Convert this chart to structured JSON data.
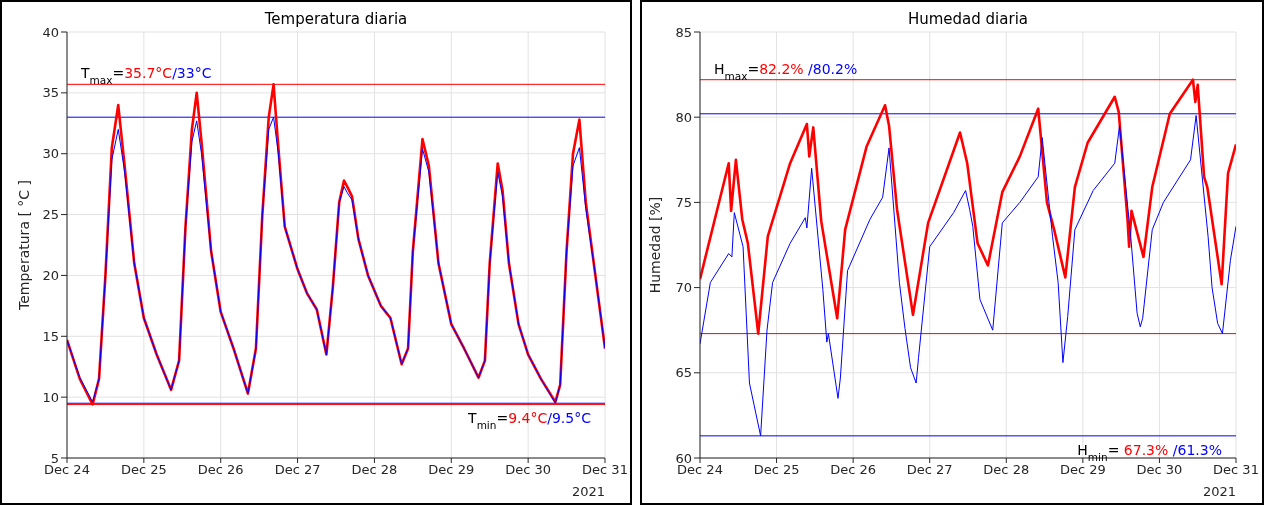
{
  "chart_data": [
    {
      "type": "line",
      "title": "Temperatura diaria",
      "ylabel": "Temperatura [ °C ]",
      "xlim": [
        "2021-12-24",
        "2021-12-31"
      ],
      "xticks": [
        {
          "value": "2021-12-24",
          "label": "Dec 24"
        },
        {
          "value": "2021-12-25",
          "label": "Dec 25"
        },
        {
          "value": "2021-12-26",
          "label": "Dec 26"
        },
        {
          "value": "2021-12-27",
          "label": "Dec 27"
        },
        {
          "value": "2021-12-28",
          "label": "Dec 28"
        },
        {
          "value": "2021-12-29",
          "label": "Dec 29"
        },
        {
          "value": "2021-12-30",
          "label": "Dec 30"
        },
        {
          "value": "2021-12-31",
          "label": "Dec 31"
        }
      ],
      "ylim": [
        5,
        40
      ],
      "yticks": [
        5,
        10,
        15,
        20,
        25,
        30,
        35,
        40
      ],
      "grid": true,
      "x": [
        "2021-12-24T00:00",
        "2021-12-24T04:00",
        "2021-12-24T08:00",
        "2021-12-24T10:00",
        "2021-12-24T12:00",
        "2021-12-24T14:00",
        "2021-12-24T16:00",
        "2021-12-24T18:00",
        "2021-12-24T21:00",
        "2021-12-25T00:00",
        "2021-12-25T04:00",
        "2021-12-25T08:30",
        "2021-12-25T11:00",
        "2021-12-25T13:00",
        "2021-12-25T15:00",
        "2021-12-25T16:30",
        "2021-12-25T18:00",
        "2021-12-25T21:00",
        "2021-12-26T00:00",
        "2021-12-26T04:00",
        "2021-12-26T08:30",
        "2021-12-26T11:00",
        "2021-12-26T13:00",
        "2021-12-26T15:00",
        "2021-12-26T16:30",
        "2021-12-26T18:00",
        "2021-12-26T20:00",
        "2021-12-27T00:00",
        "2021-12-27T03:00",
        "2021-12-27T06:00",
        "2021-12-27T09:00",
        "2021-12-27T11:00",
        "2021-12-27T13:00",
        "2021-12-27T14:30",
        "2021-12-27T15:30",
        "2021-12-27T17:00",
        "2021-12-27T19:00",
        "2021-12-27T22:00",
        "2021-12-28T02:00",
        "2021-12-28T05:00",
        "2021-12-28T08:30",
        "2021-12-28T10:30",
        "2021-12-28T12:00",
        "2021-12-28T15:00",
        "2021-12-28T17:00",
        "2021-12-28T20:00",
        "2021-12-29T00:00",
        "2021-12-29T04:00",
        "2021-12-29T08:30",
        "2021-12-29T10:30",
        "2021-12-29T12:00",
        "2021-12-29T14:30",
        "2021-12-29T16:00",
        "2021-12-29T18:00",
        "2021-12-29T21:00",
        "2021-12-30T00:00",
        "2021-12-30T04:00",
        "2021-12-30T08:30",
        "2021-12-30T10:00",
        "2021-12-30T12:00",
        "2021-12-30T14:00",
        "2021-12-30T16:00",
        "2021-12-30T18:00",
        "2021-12-30T21:00",
        "2021-12-31T00:00"
      ],
      "series": [
        {
          "color": "#ff0000",
          "values": [
            14.7,
            11.5,
            9.4,
            11.5,
            20,
            30.5,
            34,
            29,
            21,
            16.5,
            13.5,
            10.6,
            13,
            24,
            32,
            35,
            31,
            22,
            17,
            14,
            10.3,
            14,
            25,
            33,
            35.7,
            30.5,
            24,
            20.5,
            18.5,
            17.2,
            13.5,
            19,
            26,
            27.8,
            27.3,
            26.5,
            23,
            20,
            17.5,
            16.5,
            12.7,
            14,
            22,
            31.2,
            29,
            21,
            16,
            14,
            11.6,
            13,
            21,
            29.2,
            27,
            21,
            16,
            13.5,
            11.5,
            9.6,
            11,
            22,
            30,
            32.8,
            26,
            20,
            14
          ]
        },
        {
          "color": "#0000ff",
          "values": [
            14.7,
            11.6,
            9.6,
            11.5,
            20,
            29.5,
            32,
            28.5,
            21,
            16.5,
            13.5,
            10.6,
            13,
            24,
            31,
            32.7,
            30,
            22,
            17,
            14,
            10.3,
            14,
            25,
            32,
            33,
            30,
            24,
            20.5,
            18.5,
            17.2,
            13.5,
            19,
            26,
            27.3,
            26.8,
            26.2,
            23,
            20,
            17.5,
            16.5,
            12.7,
            14,
            22,
            30.4,
            28.5,
            21,
            16,
            14,
            11.6,
            13,
            21,
            28.5,
            26.5,
            21,
            16,
            13.5,
            11.5,
            9.5,
            11,
            22,
            29,
            30.5,
            25.5,
            20,
            14
          ]
        }
      ],
      "ref_lines": [
        {
          "axis": "y",
          "value": 35.7,
          "label": "35.7°C",
          "color": "#ff0000"
        },
        {
          "axis": "y",
          "value": 33,
          "label": "/33°C",
          "color": "#0000ff"
        },
        {
          "axis": "y",
          "value": 9.4,
          "label": "9.4°C",
          "color": "#ff0000"
        },
        {
          "axis": "y",
          "value": 9.5,
          "label": "/9.5°C",
          "color": "#0000ff"
        }
      ],
      "annotations": [
        "T$_{max}$=",
        "T$_{min}$=",
        "2021"
      ]
    },
    {
      "type": "line",
      "title": "Humedad diaria",
      "ylabel": "Humedad [%]",
      "xlim": [
        "2021-12-24",
        "2021-12-31"
      ],
      "xticks": [
        {
          "value": "2021-12-24",
          "label": "Dec 24"
        },
        {
          "value": "2021-12-25",
          "label": "Dec 25"
        },
        {
          "value": "2021-12-26",
          "label": "Dec 26"
        },
        {
          "value": "2021-12-27",
          "label": "Dec 27"
        },
        {
          "value": "2021-12-28",
          "label": "Dec 28"
        },
        {
          "value": "2021-12-29",
          "label": "Dec 29"
        },
        {
          "value": "2021-12-30",
          "label": "Dec 30"
        },
        {
          "value": "2021-12-31",
          "label": "Dec 31"
        }
      ],
      "ylim": [
        60,
        85
      ],
      "yticks": [
        60,
        65,
        70,
        75,
        80,
        85
      ],
      "grid": true,
      "series": [
        {
          "color": "#ff0000",
          "x": [
            "2021-12-24T00:00",
            "2021-12-24T09:00",
            "2021-12-24T09:45",
            "2021-12-24T11:15",
            "2021-12-24T13:15",
            "2021-12-24T15:00",
            "2021-12-24T18:15",
            "2021-12-24T21:15",
            "2021-12-25T04:15",
            "2021-12-25T09:30",
            "2021-12-25T10:15",
            "2021-12-25T11:30",
            "2021-12-25T14:00",
            "2021-12-25T19:00",
            "2021-12-25T21:30",
            "2021-12-26T04:15",
            "2021-12-26T10:00",
            "2021-12-26T11:15",
            "2021-12-26T13:45",
            "2021-12-26T18:45",
            "2021-12-26T23:30",
            "2021-12-27T09:30",
            "2021-12-27T11:45",
            "2021-12-27T15:00",
            "2021-12-27T18:15",
            "2021-12-27T22:45",
            "2021-12-28T04:15",
            "2021-12-28T10:00",
            "2021-12-28T12:45",
            "2021-12-28T15:00",
            "2021-12-28T18:30",
            "2021-12-28T21:30",
            "2021-12-29T01:30",
            "2021-12-29T10:00",
            "2021-12-29T11:15",
            "2021-12-29T14:00",
            "2021-12-29T14:30",
            "2021-12-29T15:15",
            "2021-12-29T19:00",
            "2021-12-29T21:45",
            "2021-12-30T03:15",
            "2021-12-30T10:30",
            "2021-12-30T11:15",
            "2021-12-30T12:00",
            "2021-12-30T14:00",
            "2021-12-30T15:00",
            "2021-12-30T19:30",
            "2021-12-30T21:30",
            "2021-12-31T00:00"
          ],
          "values": [
            70.5,
            77.3,
            74.5,
            77.5,
            74,
            72.6,
            67.3,
            73,
            77.3,
            79.6,
            77.7,
            79.4,
            73.9,
            68.2,
            73.4,
            78.3,
            80.7,
            79.5,
            74.6,
            68.4,
            73.8,
            79.1,
            77.3,
            72.6,
            71.3,
            75.6,
            77.7,
            80.5,
            75,
            73.4,
            70.6,
            75.9,
            78.5,
            81.2,
            80.3,
            74,
            72.4,
            74.5,
            71.8,
            75.9,
            80.2,
            82.2,
            80.9,
            81.9,
            76.5,
            75.9,
            70.2,
            76.7,
            78.4
          ]
        },
        {
          "color": "#0000ff",
          "x": [
            "2021-12-24T00:00",
            "2021-12-24T03:15",
            "2021-12-24T09:00",
            "2021-12-24T10:00",
            "2021-12-24T10:45",
            "2021-12-24T13:30",
            "2021-12-24T15:30",
            "2021-12-24T19:00",
            "2021-12-24T21:00",
            "2021-12-24T22:45",
            "2021-12-25T04:15",
            "2021-12-25T09:00",
            "2021-12-25T09:30",
            "2021-12-25T11:00",
            "2021-12-25T14:30",
            "2021-12-25T15:45",
            "2021-12-25T16:15",
            "2021-12-25T19:15",
            "2021-12-25T20:00",
            "2021-12-25T22:15",
            "2021-12-26T05:15",
            "2021-12-26T09:15",
            "2021-12-26T11:15",
            "2021-12-26T14:30",
            "2021-12-26T16:15",
            "2021-12-26T18:00",
            "2021-12-26T19:45",
            "2021-12-26T20:30",
            "2021-12-27T00:00",
            "2021-12-27T07:30",
            "2021-12-27T11:15",
            "2021-12-27T12:30",
            "2021-12-27T13:30",
            "2021-12-27T15:45",
            "2021-12-27T19:45",
            "2021-12-27T22:45",
            "2021-12-28T04:15",
            "2021-12-28T10:00",
            "2021-12-28T11:15",
            "2021-12-28T14:30",
            "2021-12-28T16:15",
            "2021-12-28T17:45",
            "2021-12-28T19:15",
            "2021-12-28T21:30",
            "2021-12-29T03:15",
            "2021-12-29T10:00",
            "2021-12-29T11:30",
            "2021-12-29T15:00",
            "2021-12-29T17:00",
            "2021-12-29T18:00",
            "2021-12-29T18:45",
            "2021-12-29T21:45",
            "2021-12-30T01:15",
            "2021-12-30T09:45",
            "2021-12-30T11:30",
            "2021-12-30T15:15",
            "2021-12-30T16:30",
            "2021-12-30T18:15",
            "2021-12-30T19:45",
            "2021-12-30T22:15",
            "2021-12-31T00:00"
          ],
          "values": [
            66.7,
            70.3,
            72,
            71.8,
            74.4,
            72.4,
            64.4,
            61.3,
            67.5,
            70.3,
            72.6,
            74.1,
            73.5,
            77,
            69.9,
            66.8,
            67.3,
            63.5,
            64.7,
            71,
            74,
            75.3,
            78.2,
            70.3,
            67.6,
            65.3,
            64.4,
            65.9,
            72.4,
            74.4,
            75.7,
            74.6,
            73.6,
            69.3,
            67.5,
            73.8,
            75,
            76.5,
            78.8,
            73,
            70.3,
            65.6,
            68.3,
            73.4,
            75.7,
            77.3,
            79.5,
            73,
            68.5,
            67.7,
            68.2,
            73.4,
            75,
            77.5,
            80.1,
            73,
            70,
            67.9,
            67.3,
            71.6,
            73.6
          ]
        }
      ],
      "ref_lines": [
        {
          "axis": "y",
          "value": 82.2,
          "label": "82.2%",
          "color": "#ff0000"
        },
        {
          "axis": "y",
          "value": 80.2,
          "label": " /80.2%",
          "color": "#0000ff"
        },
        {
          "axis": "y",
          "value": 67.3,
          "label": " 67.3%",
          "color": "#ff0000"
        },
        {
          "axis": "y",
          "value": 61.3,
          "label": " /61.3%",
          "color": "#0000ff"
        }
      ],
      "annotations": [
        "H$_{max}$=",
        "H$_{min}$=",
        "2021"
      ]
    }
  ]
}
